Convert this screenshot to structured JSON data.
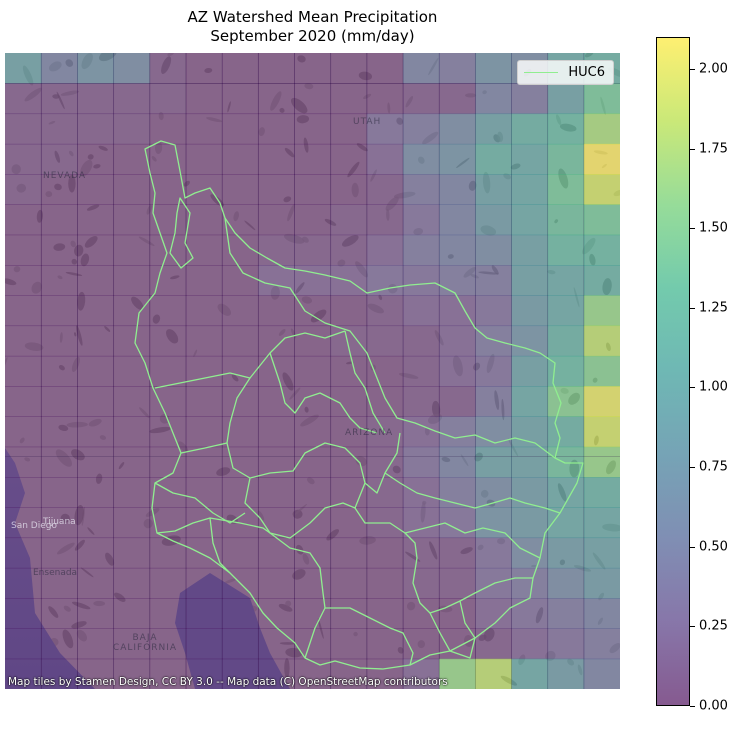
{
  "title_line1": "AZ Watershed Mean Precipitation",
  "title_line2": "September 2020 (mm/day)",
  "legend_label": "HUC6",
  "attribution": "Map tiles by Stamen Design, CC BY 3.0 -- Map data (C) OpenStreetMap contributors",
  "colorbar": {
    "min": 0.0,
    "max": 2.1,
    "ticks": [
      "2.00",
      "1.75",
      "1.50",
      "1.25",
      "1.00",
      "0.75",
      "0.50",
      "0.25",
      "0.00"
    ],
    "colormap": "viridis",
    "alpha": 0.5
  },
  "boundary_color": "#90ee90",
  "places": [
    "NEVADA",
    "UTAH",
    "ARIZONA",
    "BAJA CALIFORNIA",
    "San Diego",
    "Tijuana",
    "Ensenada"
  ],
  "chart_data": {
    "type": "heatmap",
    "title": "AZ Watershed Mean Precipitation September 2020 (mm/day)",
    "rows": 21,
    "cols": 17,
    "vmin": 0.0,
    "vmax": 2.1,
    "legend": [
      "HUC6"
    ],
    "colorbar_ticks": [
      0.0,
      0.25,
      0.5,
      0.75,
      1.0,
      1.25,
      1.5,
      1.75,
      2.0
    ],
    "grid": [
      [
        0.9,
        0.5,
        0.7,
        0.6,
        0.1,
        0.05,
        0.05,
        0.05,
        0.05,
        0.05,
        0.05,
        0.5,
        0.4,
        0.7,
        0.6,
        1.0,
        1.1
      ],
      [
        0.1,
        0.1,
        0.1,
        0.1,
        0.1,
        0.05,
        0.05,
        0.05,
        0.05,
        0.05,
        0.05,
        0.1,
        0.1,
        0.5,
        0.4,
        0.9,
        1.4
      ],
      [
        0.1,
        0.1,
        0.1,
        0.1,
        0.05,
        0.05,
        0.05,
        0.05,
        0.05,
        0.05,
        0.3,
        0.4,
        0.6,
        0.9,
        1.1,
        1.2,
        1.7
      ],
      [
        0.1,
        0.1,
        0.05,
        0.05,
        0.05,
        0.05,
        0.05,
        0.05,
        0.05,
        0.05,
        0.2,
        0.6,
        0.7,
        1.1,
        1.0,
        1.3,
        2.1
      ],
      [
        0.1,
        0.05,
        0.05,
        0.05,
        0.05,
        0.05,
        0.05,
        0.05,
        0.05,
        0.05,
        0.1,
        0.4,
        0.5,
        0.9,
        1.0,
        1.4,
        1.9
      ],
      [
        0.05,
        0.05,
        0.05,
        0.05,
        0.05,
        0.05,
        0.05,
        0.05,
        0.05,
        0.1,
        0.1,
        0.3,
        0.5,
        0.8,
        1.0,
        1.3,
        1.4
      ],
      [
        0.05,
        0.05,
        0.05,
        0.05,
        0.05,
        0.05,
        0.05,
        0.1,
        0.1,
        0.1,
        0.2,
        0.4,
        0.5,
        0.6,
        0.9,
        1.2,
        1.2
      ],
      [
        0.05,
        0.05,
        0.05,
        0.05,
        0.05,
        0.05,
        0.05,
        0.2,
        0.2,
        0.2,
        0.3,
        0.3,
        0.4,
        0.4,
        0.9,
        1.0,
        1.1
      ],
      [
        0.05,
        0.05,
        0.05,
        0.05,
        0.05,
        0.05,
        0.05,
        0.05,
        0.05,
        0.05,
        0.1,
        0.2,
        0.2,
        0.3,
        0.8,
        1.0,
        1.6
      ],
      [
        0.05,
        0.05,
        0.05,
        0.05,
        0.05,
        0.05,
        0.05,
        0.05,
        0.05,
        0.1,
        0.1,
        0.1,
        0.2,
        0.4,
        0.7,
        1.1,
        1.8
      ],
      [
        0.05,
        0.05,
        0.05,
        0.05,
        0.05,
        0.05,
        0.05,
        0.05,
        0.05,
        0.05,
        0.05,
        0.1,
        0.2,
        0.3,
        0.9,
        1.2,
        1.5
      ],
      [
        0.05,
        0.05,
        0.05,
        0.05,
        0.05,
        0.05,
        0.05,
        0.05,
        0.05,
        0.05,
        0.05,
        0.1,
        0.1,
        0.4,
        1.0,
        1.5,
        2.0
      ],
      [
        0.05,
        0.05,
        0.05,
        0.05,
        0.05,
        0.05,
        0.05,
        0.05,
        0.05,
        0.05,
        0.1,
        0.2,
        0.4,
        0.6,
        0.9,
        1.1,
        1.9
      ],
      [
        0.05,
        0.05,
        0.05,
        0.05,
        0.05,
        0.05,
        0.05,
        0.05,
        0.05,
        0.05,
        0.1,
        0.3,
        0.5,
        0.9,
        0.9,
        1.3,
        1.6
      ],
      [
        0.05,
        0.05,
        0.05,
        0.05,
        0.05,
        0.05,
        0.05,
        0.05,
        0.05,
        0.05,
        0.1,
        0.2,
        0.4,
        0.6,
        0.8,
        1.0,
        1.1
      ],
      [
        0.05,
        0.05,
        0.05,
        0.05,
        0.05,
        0.05,
        0.05,
        0.05,
        0.05,
        0.05,
        0.1,
        0.2,
        0.3,
        0.7,
        0.8,
        1.0,
        1.0
      ],
      [
        0.05,
        0.05,
        0.05,
        0.05,
        0.05,
        0.05,
        0.05,
        0.05,
        0.05,
        0.05,
        0.05,
        0.1,
        0.1,
        0.3,
        0.6,
        0.8,
        0.9
      ],
      [
        0.05,
        0.05,
        0.05,
        0.05,
        0.05,
        0.05,
        0.05,
        0.05,
        0.05,
        0.05,
        0.05,
        0.1,
        0.1,
        0.3,
        0.4,
        0.6,
        0.8
      ],
      [
        0.05,
        0.05,
        0.05,
        0.05,
        0.05,
        0.05,
        0.05,
        0.05,
        0.05,
        0.05,
        0.05,
        0.05,
        0.05,
        0.2,
        0.3,
        0.4,
        0.5
      ],
      [
        0.05,
        0.05,
        0.05,
        0.05,
        0.05,
        0.05,
        0.05,
        0.05,
        0.05,
        0.05,
        0.05,
        0.05,
        0.05,
        0.1,
        0.2,
        0.3,
        0.4
      ],
      [
        0.05,
        0.05,
        0.05,
        0.05,
        0.05,
        0.05,
        0.05,
        0.05,
        0.05,
        0.05,
        0.05,
        0.2,
        1.6,
        1.8,
        1.0,
        0.8,
        0.5
      ]
    ]
  }
}
